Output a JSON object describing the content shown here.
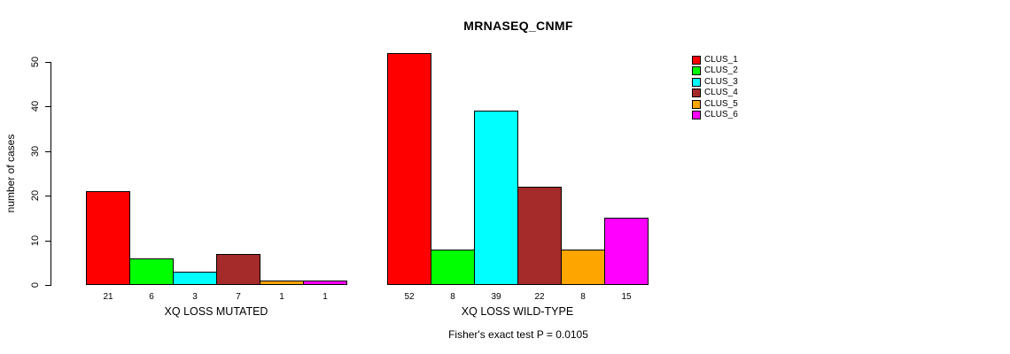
{
  "chart_data": {
    "type": "bar",
    "title": "MRNASEQ_CNMF",
    "xlabel": "",
    "ylabel": "number of cases",
    "ylim": [
      0,
      50
    ],
    "yticks": [
      0,
      10,
      20,
      30,
      40,
      50
    ],
    "grid": false,
    "legend_position": "right",
    "colors": [
      "#FF0000",
      "#00FF00",
      "#00FFFF",
      "#A52A2A",
      "#FFA500",
      "#FF00FF"
    ],
    "groups": [
      {
        "label": "XQ LOSS MUTATED",
        "values": [
          21,
          6,
          3,
          7,
          1,
          1
        ]
      },
      {
        "label": "XQ LOSS WILD-TYPE",
        "values": [
          52,
          8,
          39,
          22,
          8,
          15
        ]
      }
    ],
    "legend": {
      "items": [
        {
          "label": "CLUS_1",
          "color": "#FF0000"
        },
        {
          "label": "CLUS_2",
          "color": "#00FF00"
        },
        {
          "label": "CLUS_3",
          "color": "#00FFFF"
        },
        {
          "label": "CLUS_4",
          "color": "#A52A2A"
        },
        {
          "label": "CLUS_5",
          "color": "#FFA500"
        },
        {
          "label": "CLUS_6",
          "color": "#FF00FF"
        }
      ]
    },
    "annotation": "Fisher's exact test P = 0.0105"
  }
}
